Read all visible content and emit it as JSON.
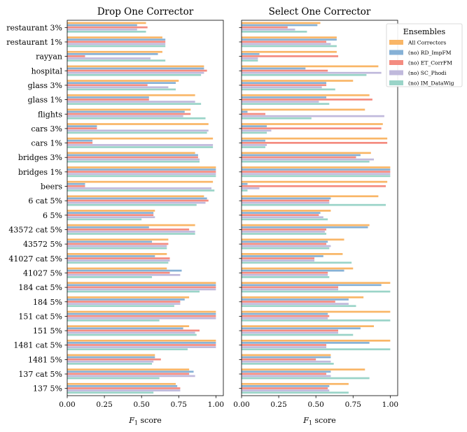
{
  "chart_data": {
    "type": "bar",
    "orientation": "horizontal",
    "categories": [
      "137 5%",
      "137 cat 5%",
      "1481 5%",
      "1481 cat 5%",
      "151 5%",
      "151 cat 5%",
      "184 5%",
      "184 cat 5%",
      "41027 5%",
      "41027 cat 5%",
      "43572 5%",
      "43572 cat 5%",
      "6 5%",
      "6 cat 5%",
      "beers",
      "bridges 1%",
      "bridges 3%",
      "cars 1%",
      "cars 3%",
      "flights",
      "glass 1%",
      "glass 3%",
      "hospital",
      "rayyan",
      "restaurant 1%",
      "restaurant 3%"
    ],
    "legend": {
      "title": "Ensembles",
      "placement": "top-right",
      "entries": [
        "All Correctors",
        "(no) RD_ImpFM",
        "(no) ET_CorrFM",
        "(no) SC_Phodi",
        "(no) IM_DataWig"
      ]
    },
    "colors": [
      "#f9b667",
      "#86b1d6",
      "#f48c80",
      "#c0b9dc",
      "#9ad4c8"
    ],
    "panels": [
      {
        "title": "Drop One Corrector",
        "xlabel": "F1 score",
        "xlim": [
          0,
          1.05
        ],
        "xticks": [
          "0.00",
          "0.25",
          "0.50",
          "0.75",
          "1.00"
        ],
        "series": [
          {
            "name": "All Correctors",
            "values": [
              0.73,
              0.82,
              0.59,
              1.0,
              0.82,
              1.0,
              0.82,
              1.0,
              0.67,
              0.67,
              0.68,
              0.86,
              0.59,
              0.92,
              0.98,
              1.0,
              0.86,
              0.98,
              0.95,
              0.83,
              0.86,
              0.75,
              0.92,
              0.64,
              0.64,
              0.53
            ]
          },
          {
            "name": "(no) RD_ImpFM",
            "values": [
              0.74,
              0.85,
              0.59,
              1.0,
              0.78,
              1.0,
              0.79,
              1.0,
              0.77,
              0.59,
              0.57,
              0.55,
              0.58,
              0.94,
              0.12,
              1.0,
              0.88,
              0.17,
              0.2,
              0.79,
              0.55,
              0.73,
              0.92,
              0.61,
              0.66,
              0.47
            ]
          },
          {
            "name": "(no) ET_CorrFM",
            "values": [
              0.76,
              0.82,
              0.63,
              1.0,
              0.89,
              1.0,
              0.76,
              1.0,
              0.69,
              0.69,
              0.68,
              0.82,
              0.58,
              0.95,
              0.12,
              1.0,
              0.88,
              0.17,
              0.2,
              0.83,
              0.55,
              0.54,
              0.94,
              0.12,
              0.66,
              0.54
            ]
          },
          {
            "name": "(no) SC_Phodi",
            "values": [
              0.76,
              0.86,
              0.58,
              1.0,
              0.86,
              1.0,
              0.76,
              1.0,
              0.76,
              0.69,
              0.67,
              0.86,
              0.59,
              0.93,
              0.97,
              1.0,
              0.89,
              0.98,
              0.95,
              0.78,
              0.86,
              0.68,
              0.92,
              0.56,
              0.66,
              0.47
            ]
          },
          {
            "name": "(no) IM_DataWig",
            "values": [
              0.58,
              0.62,
              0.57,
              0.81,
              0.87,
              0.62,
              0.72,
              0.89,
              0.57,
              0.68,
              0.67,
              0.86,
              0.5,
              0.87,
              0.99,
              1.0,
              0.89,
              0.98,
              0.94,
              0.93,
              0.9,
              0.73,
              0.9,
              0.66,
              0.66,
              0.53
            ]
          }
        ]
      },
      {
        "title": "Select One Corrector",
        "xlabel": "F1 score",
        "xlim": [
          0,
          1.05
        ],
        "xticks": [
          "0.00",
          "0.25",
          "0.50",
          "0.75",
          "1.00"
        ],
        "series": [
          {
            "name": "All Correctors",
            "values": [
              0.72,
              0.83,
              0.6,
              1.0,
              0.89,
              1.0,
              0.82,
              1.0,
              0.75,
              0.68,
              0.69,
              0.86,
              0.6,
              0.92,
              0.98,
              1.0,
              0.87,
              0.98,
              0.95,
              0.83,
              0.86,
              0.75,
              0.92,
              0.64,
              0.64,
              0.53
            ]
          },
          {
            "name": "(no) RD_ImpFM",
            "values": [
              0.59,
              0.6,
              0.6,
              0.86,
              0.8,
              0.58,
              0.72,
              0.94,
              0.69,
              0.55,
              0.58,
              0.85,
              0.53,
              0.6,
              0.04,
              1.0,
              0.8,
              0.16,
              0.17,
              0.04,
              0.57,
              0.57,
              0.43,
              0.12,
              0.64,
              0.51
            ]
          },
          {
            "name": "(no) ET_CorrFM",
            "values": [
              0.58,
              0.57,
              0.5,
              0.57,
              0.65,
              0.59,
              0.63,
              0.65,
              0.58,
              0.49,
              0.57,
              0.57,
              0.52,
              0.59,
              0.97,
              1.0,
              0.77,
              0.98,
              0.94,
              0.16,
              0.88,
              0.57,
              0.58,
              0.65,
              0.57,
              0.31
            ]
          },
          {
            "name": "(no) SC_Phodi",
            "values": [
              0.59,
              0.6,
              0.6,
              0.57,
              0.65,
              0.58,
              0.72,
              0.65,
              0.58,
              0.49,
              0.6,
              0.56,
              0.55,
              0.59,
              0.12,
              1.0,
              0.89,
              0.17,
              0.2,
              0.96,
              0.52,
              0.54,
              0.94,
              0.11,
              0.6,
              0.36
            ]
          },
          {
            "name": "(no) IM_DataWig",
            "values": [
              0.72,
              0.86,
              0.62,
              1.0,
              0.75,
              1.0,
              0.77,
              1.0,
              0.59,
              0.74,
              0.59,
              0.57,
              0.58,
              0.97,
              0.04,
              1.0,
              0.86,
              0.16,
              0.17,
              0.47,
              0.59,
              0.63,
              0.84,
              0.11,
              0.64,
              0.44
            ]
          }
        ]
      }
    ]
  }
}
